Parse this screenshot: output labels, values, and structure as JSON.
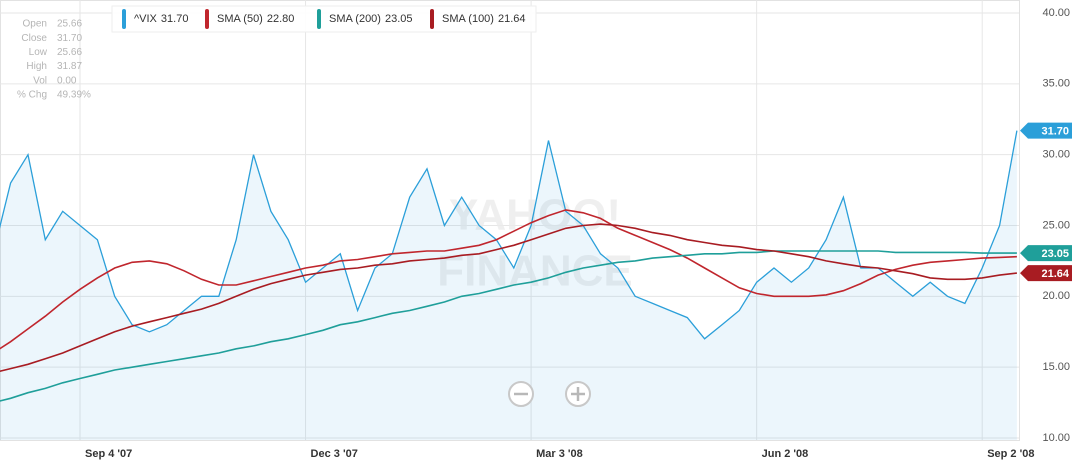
{
  "chart_data": {
    "type": "line",
    "categories": [
      null,
      null,
      null,
      null,
      null,
      "Sep 4 '07",
      null,
      null,
      null,
      null,
      null,
      null,
      null,
      null,
      null,
      null,
      null,
      null,
      "Dec 3 '07",
      null,
      null,
      null,
      null,
      null,
      null,
      null,
      null,
      null,
      null,
      null,
      null,
      "Mar 3 '08",
      null,
      null,
      null,
      null,
      null,
      null,
      null,
      null,
      null,
      null,
      null,
      null,
      "Jun 2 '08",
      null,
      null,
      null,
      null,
      null,
      null,
      null,
      null,
      null,
      null,
      null,
      null,
      "Sep 2 '08",
      null,
      null
    ],
    "series": [
      {
        "name": "^VIX",
        "last_value_label": "31.70",
        "color": "#2b9fd9",
        "area": true,
        "badge": true,
        "values": [
          23,
          28,
          30,
          24,
          26,
          25,
          24,
          20,
          18,
          17.5,
          18,
          19,
          20,
          20,
          24,
          30,
          26,
          24,
          21,
          22,
          23,
          19,
          22,
          23,
          27,
          29,
          25,
          27,
          25,
          24,
          22,
          25,
          31,
          26,
          25,
          23,
          22,
          20,
          19.5,
          19,
          18.5,
          17,
          18,
          19,
          21,
          22,
          21,
          22,
          24,
          27,
          22,
          22,
          21,
          20,
          21,
          20,
          19.5,
          22,
          25,
          31.7
        ]
      },
      {
        "name": "SMA (50)",
        "last_value_label": "22.80",
        "color": "#c0262d",
        "area": false,
        "badge": false,
        "values": [
          16,
          16.8,
          17.7,
          18.6,
          19.6,
          20.5,
          21.3,
          22,
          22.4,
          22.5,
          22.3,
          21.8,
          21.2,
          20.8,
          20.8,
          21.1,
          21.4,
          21.7,
          22,
          22.2,
          22.5,
          22.6,
          22.8,
          23,
          23.1,
          23.2,
          23.2,
          23.4,
          23.6,
          24,
          24.6,
          25.2,
          25.7,
          26.1,
          25.9,
          25.5,
          24.8,
          24.3,
          23.8,
          23.3,
          22.7,
          22,
          21.3,
          20.6,
          20.2,
          20,
          20,
          20,
          20.1,
          20.4,
          20.9,
          21.5,
          21.9,
          22.2,
          22.4,
          22.5,
          22.6,
          22.7,
          22.75,
          22.8
        ]
      },
      {
        "name": "SMA (200)",
        "last_value_label": "23.05",
        "color": "#1f9f9a",
        "area": false,
        "badge": true,
        "values": [
          12.5,
          12.8,
          13.2,
          13.5,
          13.9,
          14.2,
          14.5,
          14.8,
          15,
          15.2,
          15.4,
          15.6,
          15.8,
          16,
          16.3,
          16.5,
          16.8,
          17,
          17.3,
          17.6,
          18,
          18.2,
          18.5,
          18.8,
          19,
          19.3,
          19.6,
          20,
          20.2,
          20.5,
          20.8,
          21,
          21.3,
          21.7,
          22,
          22.2,
          22.4,
          22.5,
          22.7,
          22.8,
          22.9,
          23,
          23,
          23.1,
          23.1,
          23.2,
          23.2,
          23.2,
          23.2,
          23.2,
          23.2,
          23.2,
          23.1,
          23.1,
          23.1,
          23.1,
          23.1,
          23.05,
          23.05,
          23.05
        ]
      },
      {
        "name": "SMA (100)",
        "last_value_label": "21.64",
        "color": "#a81c22",
        "area": false,
        "badge": true,
        "values": [
          14.6,
          14.9,
          15.2,
          15.6,
          16,
          16.5,
          17,
          17.5,
          17.9,
          18.2,
          18.5,
          18.8,
          19.1,
          19.5,
          20,
          20.5,
          20.9,
          21.2,
          21.5,
          21.7,
          21.9,
          22,
          22.2,
          22.3,
          22.5,
          22.6,
          22.7,
          22.9,
          23,
          23.3,
          23.6,
          24,
          24.4,
          24.8,
          25,
          25.1,
          25,
          24.8,
          24.5,
          24.3,
          24,
          23.8,
          23.6,
          23.5,
          23.3,
          23.2,
          23,
          22.8,
          22.5,
          22.3,
          22.1,
          22,
          21.8,
          21.6,
          21.3,
          21.2,
          21.2,
          21.3,
          21.5,
          21.64
        ]
      }
    ],
    "ylim": [
      10,
      40
    ],
    "yticks": [
      {
        "value": 10,
        "label": "10.00"
      },
      {
        "value": 15,
        "label": "15.00"
      },
      {
        "value": 20,
        "label": "20.00"
      },
      {
        "value": 25,
        "label": "25.00"
      },
      {
        "value": 30,
        "label": "30.00"
      },
      {
        "value": 35,
        "label": "35.00"
      },
      {
        "value": 40,
        "label": "40.00"
      }
    ],
    "grid": true,
    "quote": [
      {
        "label": "Open",
        "value": "25.66"
      },
      {
        "label": "Close",
        "value": "31.70"
      },
      {
        "label": "Low",
        "value": "25.66"
      },
      {
        "label": "High",
        "value": "31.87"
      },
      {
        "label": "Vol",
        "value": "0.00"
      },
      {
        "label": "% Chg",
        "value": "49.39%"
      }
    ],
    "watermark": [
      "YAHOO!",
      "FINANCE"
    ]
  }
}
